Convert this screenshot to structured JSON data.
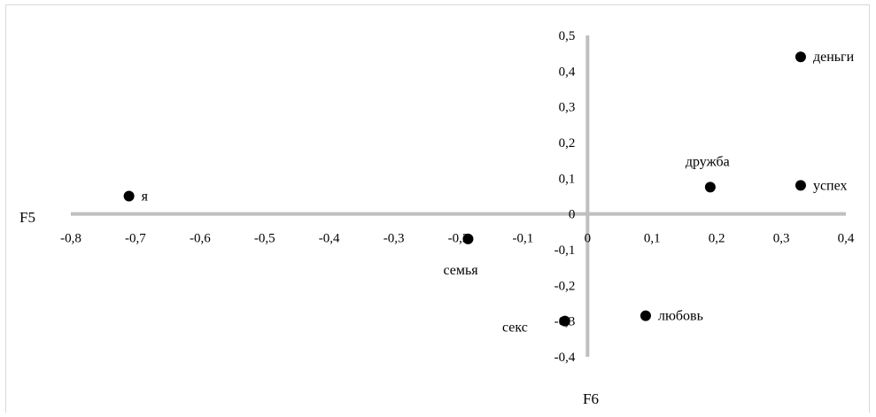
{
  "chart_data": {
    "type": "scatter",
    "xlabel": "F5",
    "ylabel": "F6",
    "xlim": [
      -0.8,
      0.4
    ],
    "ylim": [
      -0.4,
      0.5
    ],
    "x_ticks": [
      "-0,8",
      "-0,7",
      "-0,6",
      "-0,5",
      "-0,4",
      "-0,3",
      "-0,2",
      "-0,1",
      "0",
      "0,1",
      "0,2",
      "0,3",
      "0,4"
    ],
    "y_ticks": [
      "0,5",
      "0,4",
      "0,3",
      "0,2",
      "0,1",
      "0",
      "-0,1",
      "-0,2",
      "-0,3",
      "-0,4"
    ],
    "grid": false,
    "legend": "none",
    "axis_color": "#bfbfbf",
    "point_color": "#000000",
    "points": [
      {
        "label": "я",
        "x": -0.71,
        "y": 0.05,
        "label_pos": "right"
      },
      {
        "label": "деньги",
        "x": 0.33,
        "y": 0.44,
        "label_pos": "right"
      },
      {
        "label": "дружба",
        "x": 0.19,
        "y": 0.075,
        "label_pos": "above"
      },
      {
        "label": "успех",
        "x": 0.33,
        "y": 0.08,
        "label_pos": "right"
      },
      {
        "label": "семья",
        "x": -0.185,
        "y": -0.07,
        "label_pos": "below-left"
      },
      {
        "label": "секс",
        "x": -0.035,
        "y": -0.3,
        "label_pos": "left"
      },
      {
        "label": "любовь",
        "x": 0.09,
        "y": -0.285,
        "label_pos": "right"
      }
    ]
  }
}
